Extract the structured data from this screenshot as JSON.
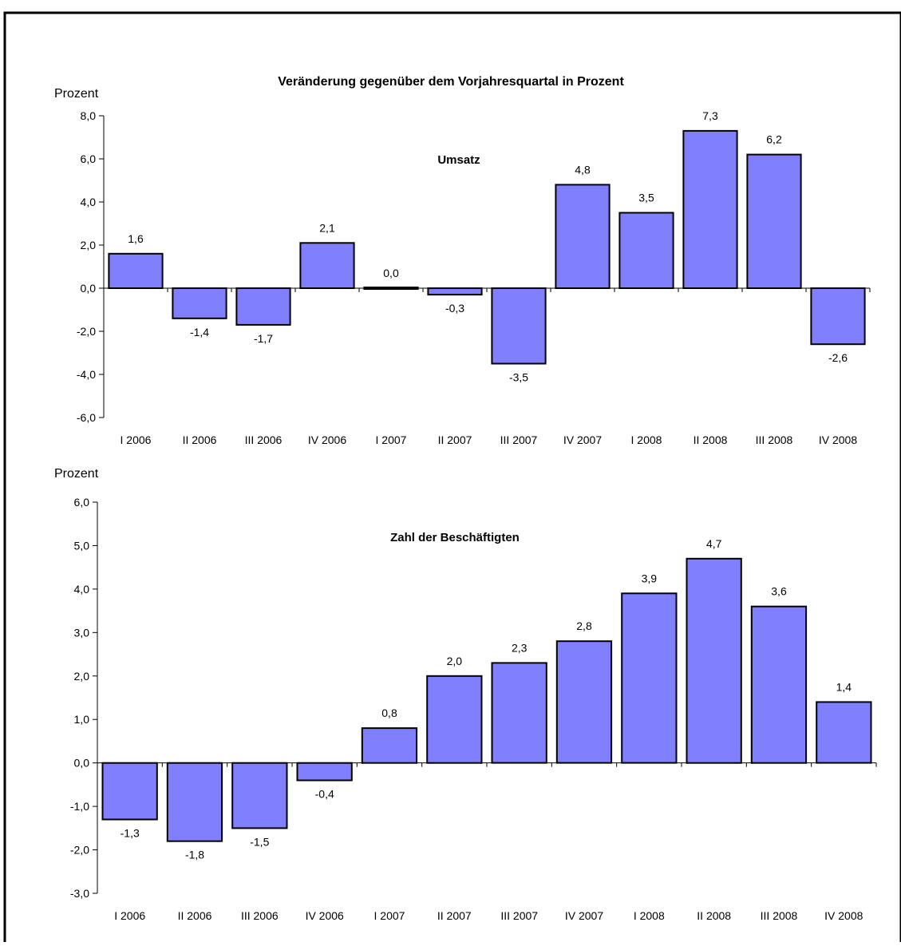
{
  "title": "Veränderung gegenüber dem Vorjahresquartal in Prozent",
  "colors": {
    "bar_fill": "#8080FF",
    "bar_stroke": "#000000",
    "frame": "#000000"
  },
  "chart_data": [
    {
      "type": "bar",
      "title": "Umsatz",
      "ylabel": "Prozent",
      "ylim": [
        -6,
        8
      ],
      "yticks": [
        8,
        6,
        4,
        2,
        0,
        -2,
        -4,
        -6
      ],
      "yticklabels": [
        "8,0",
        "6,0",
        "4,0",
        "2,0",
        "0,0",
        "-2,0",
        "-4,0",
        "-6,0"
      ],
      "categories": [
        "I 2006",
        "II 2006",
        "III 2006",
        "IV 2006",
        "I 2007",
        "II 2007",
        "III 2007",
        "IV 2007",
        "I 2008",
        "II 2008",
        "III 2008",
        "IV 2008"
      ],
      "values": [
        1.6,
        -1.4,
        -1.7,
        2.1,
        0.0,
        -0.3,
        -3.5,
        4.8,
        3.5,
        7.3,
        6.2,
        -2.6
      ],
      "data_labels": [
        "1,6",
        "-1,4",
        "-1,7",
        "2,1",
        "0,0",
        "-0,3",
        "-3,5",
        "4,8",
        "3,5",
        "7,3",
        "6,2",
        "-2,6"
      ],
      "grid": false,
      "legend": "none"
    },
    {
      "type": "bar",
      "title": "Zahl der Beschäftigten",
      "ylabel": "Prozent",
      "ylim": [
        -3,
        6
      ],
      "yticks": [
        6,
        5,
        4,
        3,
        2,
        1,
        0,
        -1,
        -2,
        -3
      ],
      "yticklabels": [
        "6,0",
        "5,0",
        "4,0",
        "3,0",
        "2,0",
        "1,0",
        "0,0",
        "-1,0",
        "-2,0",
        "-3,0"
      ],
      "categories": [
        "I 2006",
        "II 2006",
        "III 2006",
        "IV 2006",
        "I 2007",
        "II 2007",
        "III 2007",
        "IV 2007",
        "I 2008",
        "II 2008",
        "III 2008",
        "IV 2008"
      ],
      "values": [
        -1.3,
        -1.8,
        -1.5,
        -0.4,
        0.8,
        2.0,
        2.3,
        2.8,
        3.9,
        4.7,
        3.6,
        1.4
      ],
      "data_labels": [
        "-1,3",
        "-1,8",
        "-1,5",
        "-0,4",
        "0,8",
        "2,0",
        "2,3",
        "2,8",
        "3,9",
        "4,7",
        "3,6",
        "1,4"
      ],
      "grid": false,
      "legend": "none"
    }
  ]
}
